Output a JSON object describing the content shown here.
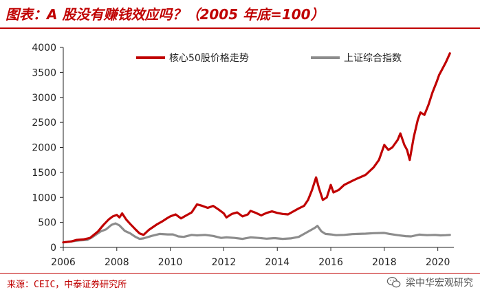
{
  "header": {
    "title": "图表：A 股没有赚钱效应吗？（2005 年底=100）"
  },
  "footer": {
    "source": "来源：CEIC，中泰证券研究所",
    "watermark": "梁中华宏观研究",
    "watermark_icon": "wechat-icon"
  },
  "colors": {
    "accent": "#c00000",
    "series_core50": "#c00000",
    "series_sse": "#8c8c8c"
  },
  "chart_data": {
    "type": "line",
    "title": "图表：A 股没有赚钱效应吗？（2005 年底=100）",
    "xlabel": "",
    "ylabel": "",
    "xlim": [
      2006,
      2020.6
    ],
    "ylim": [
      0,
      4000
    ],
    "xticks": [
      2006,
      2008,
      2010,
      2012,
      2014,
      2016,
      2018,
      2020
    ],
    "xtick_labels": [
      "2006",
      "2008",
      "2010",
      "2012",
      "2014",
      "2016",
      "2018",
      "2020"
    ],
    "yticks": [
      0,
      500,
      1000,
      1500,
      2000,
      2500,
      3000,
      3500,
      4000
    ],
    "ytick_labels": [
      "0",
      "500",
      "1000",
      "1500",
      "2000",
      "2500",
      "3000",
      "3500",
      "4000"
    ],
    "legend_position": "top",
    "grid": false,
    "series": [
      {
        "name": "核心50股价格走势",
        "points": [
          [
            2006.0,
            100
          ],
          [
            2006.3,
            120
          ],
          [
            2006.5,
            150
          ],
          [
            2006.75,
            160
          ],
          [
            2007.0,
            190
          ],
          [
            2007.3,
            320
          ],
          [
            2007.5,
            450
          ],
          [
            2007.7,
            560
          ],
          [
            2007.85,
            620
          ],
          [
            2008.0,
            650
          ],
          [
            2008.1,
            600
          ],
          [
            2008.2,
            680
          ],
          [
            2008.35,
            560
          ],
          [
            2008.5,
            470
          ],
          [
            2008.7,
            360
          ],
          [
            2008.85,
            280
          ],
          [
            2009.0,
            250
          ],
          [
            2009.2,
            350
          ],
          [
            2009.5,
            460
          ],
          [
            2009.7,
            520
          ],
          [
            2009.9,
            590
          ],
          [
            2010.0,
            620
          ],
          [
            2010.2,
            660
          ],
          [
            2010.4,
            580
          ],
          [
            2010.6,
            640
          ],
          [
            2010.8,
            700
          ],
          [
            2011.0,
            860
          ],
          [
            2011.2,
            830
          ],
          [
            2011.4,
            790
          ],
          [
            2011.6,
            830
          ],
          [
            2011.8,
            760
          ],
          [
            2012.0,
            680
          ],
          [
            2012.1,
            600
          ],
          [
            2012.3,
            670
          ],
          [
            2012.5,
            700
          ],
          [
            2012.7,
            620
          ],
          [
            2012.9,
            660
          ],
          [
            2013.0,
            730
          ],
          [
            2013.2,
            690
          ],
          [
            2013.4,
            640
          ],
          [
            2013.6,
            690
          ],
          [
            2013.8,
            720
          ],
          [
            2014.0,
            690
          ],
          [
            2014.2,
            670
          ],
          [
            2014.4,
            660
          ],
          [
            2014.6,
            720
          ],
          [
            2014.8,
            780
          ],
          [
            2015.0,
            830
          ],
          [
            2015.15,
            950
          ],
          [
            2015.3,
            1150
          ],
          [
            2015.45,
            1400
          ],
          [
            2015.55,
            1200
          ],
          [
            2015.7,
            950
          ],
          [
            2015.85,
            1000
          ],
          [
            2016.0,
            1250
          ],
          [
            2016.1,
            1100
          ],
          [
            2016.3,
            1150
          ],
          [
            2016.5,
            1250
          ],
          [
            2016.8,
            1330
          ],
          [
            2017.0,
            1380
          ],
          [
            2017.3,
            1450
          ],
          [
            2017.6,
            1600
          ],
          [
            2017.8,
            1750
          ],
          [
            2018.0,
            2050
          ],
          [
            2018.15,
            1950
          ],
          [
            2018.3,
            2000
          ],
          [
            2018.5,
            2150
          ],
          [
            2018.6,
            2280
          ],
          [
            2018.75,
            2050
          ],
          [
            2018.85,
            1950
          ],
          [
            2018.95,
            1750
          ],
          [
            2019.1,
            2200
          ],
          [
            2019.25,
            2550
          ],
          [
            2019.35,
            2700
          ],
          [
            2019.5,
            2650
          ],
          [
            2019.65,
            2850
          ],
          [
            2019.8,
            3100
          ],
          [
            2019.95,
            3300
          ],
          [
            2020.05,
            3450
          ],
          [
            2020.15,
            3550
          ],
          [
            2020.3,
            3700
          ],
          [
            2020.45,
            3880
          ]
        ]
      },
      {
        "name": "上证综合指数",
        "points": [
          [
            2006.0,
            100
          ],
          [
            2006.3,
            120
          ],
          [
            2006.6,
            140
          ],
          [
            2006.9,
            150
          ],
          [
            2007.1,
            210
          ],
          [
            2007.4,
            320
          ],
          [
            2007.6,
            360
          ],
          [
            2007.8,
            450
          ],
          [
            2007.95,
            480
          ],
          [
            2008.1,
            440
          ],
          [
            2008.3,
            330
          ],
          [
            2008.5,
            280
          ],
          [
            2008.7,
            210
          ],
          [
            2008.85,
            170
          ],
          [
            2009.0,
            180
          ],
          [
            2009.3,
            230
          ],
          [
            2009.6,
            270
          ],
          [
            2009.9,
            260
          ],
          [
            2010.1,
            260
          ],
          [
            2010.3,
            220
          ],
          [
            2010.5,
            210
          ],
          [
            2010.8,
            250
          ],
          [
            2011.0,
            240
          ],
          [
            2011.3,
            250
          ],
          [
            2011.6,
            230
          ],
          [
            2011.9,
            190
          ],
          [
            2012.1,
            200
          ],
          [
            2012.4,
            190
          ],
          [
            2012.7,
            170
          ],
          [
            2013.0,
            200
          ],
          [
            2013.3,
            190
          ],
          [
            2013.6,
            175
          ],
          [
            2013.9,
            185
          ],
          [
            2014.2,
            170
          ],
          [
            2014.5,
            180
          ],
          [
            2014.8,
            210
          ],
          [
            2015.0,
            270
          ],
          [
            2015.2,
            330
          ],
          [
            2015.4,
            390
          ],
          [
            2015.5,
            430
          ],
          [
            2015.65,
            320
          ],
          [
            2015.8,
            270
          ],
          [
            2016.0,
            260
          ],
          [
            2016.2,
            245
          ],
          [
            2016.5,
            250
          ],
          [
            2016.8,
            265
          ],
          [
            2017.0,
            270
          ],
          [
            2017.3,
            275
          ],
          [
            2017.6,
            285
          ],
          [
            2018.0,
            290
          ],
          [
            2018.2,
            270
          ],
          [
            2018.5,
            245
          ],
          [
            2018.8,
            225
          ],
          [
            2019.0,
            220
          ],
          [
            2019.3,
            255
          ],
          [
            2019.6,
            245
          ],
          [
            2019.9,
            250
          ],
          [
            2020.1,
            240
          ],
          [
            2020.3,
            245
          ],
          [
            2020.45,
            250
          ]
        ]
      }
    ]
  }
}
